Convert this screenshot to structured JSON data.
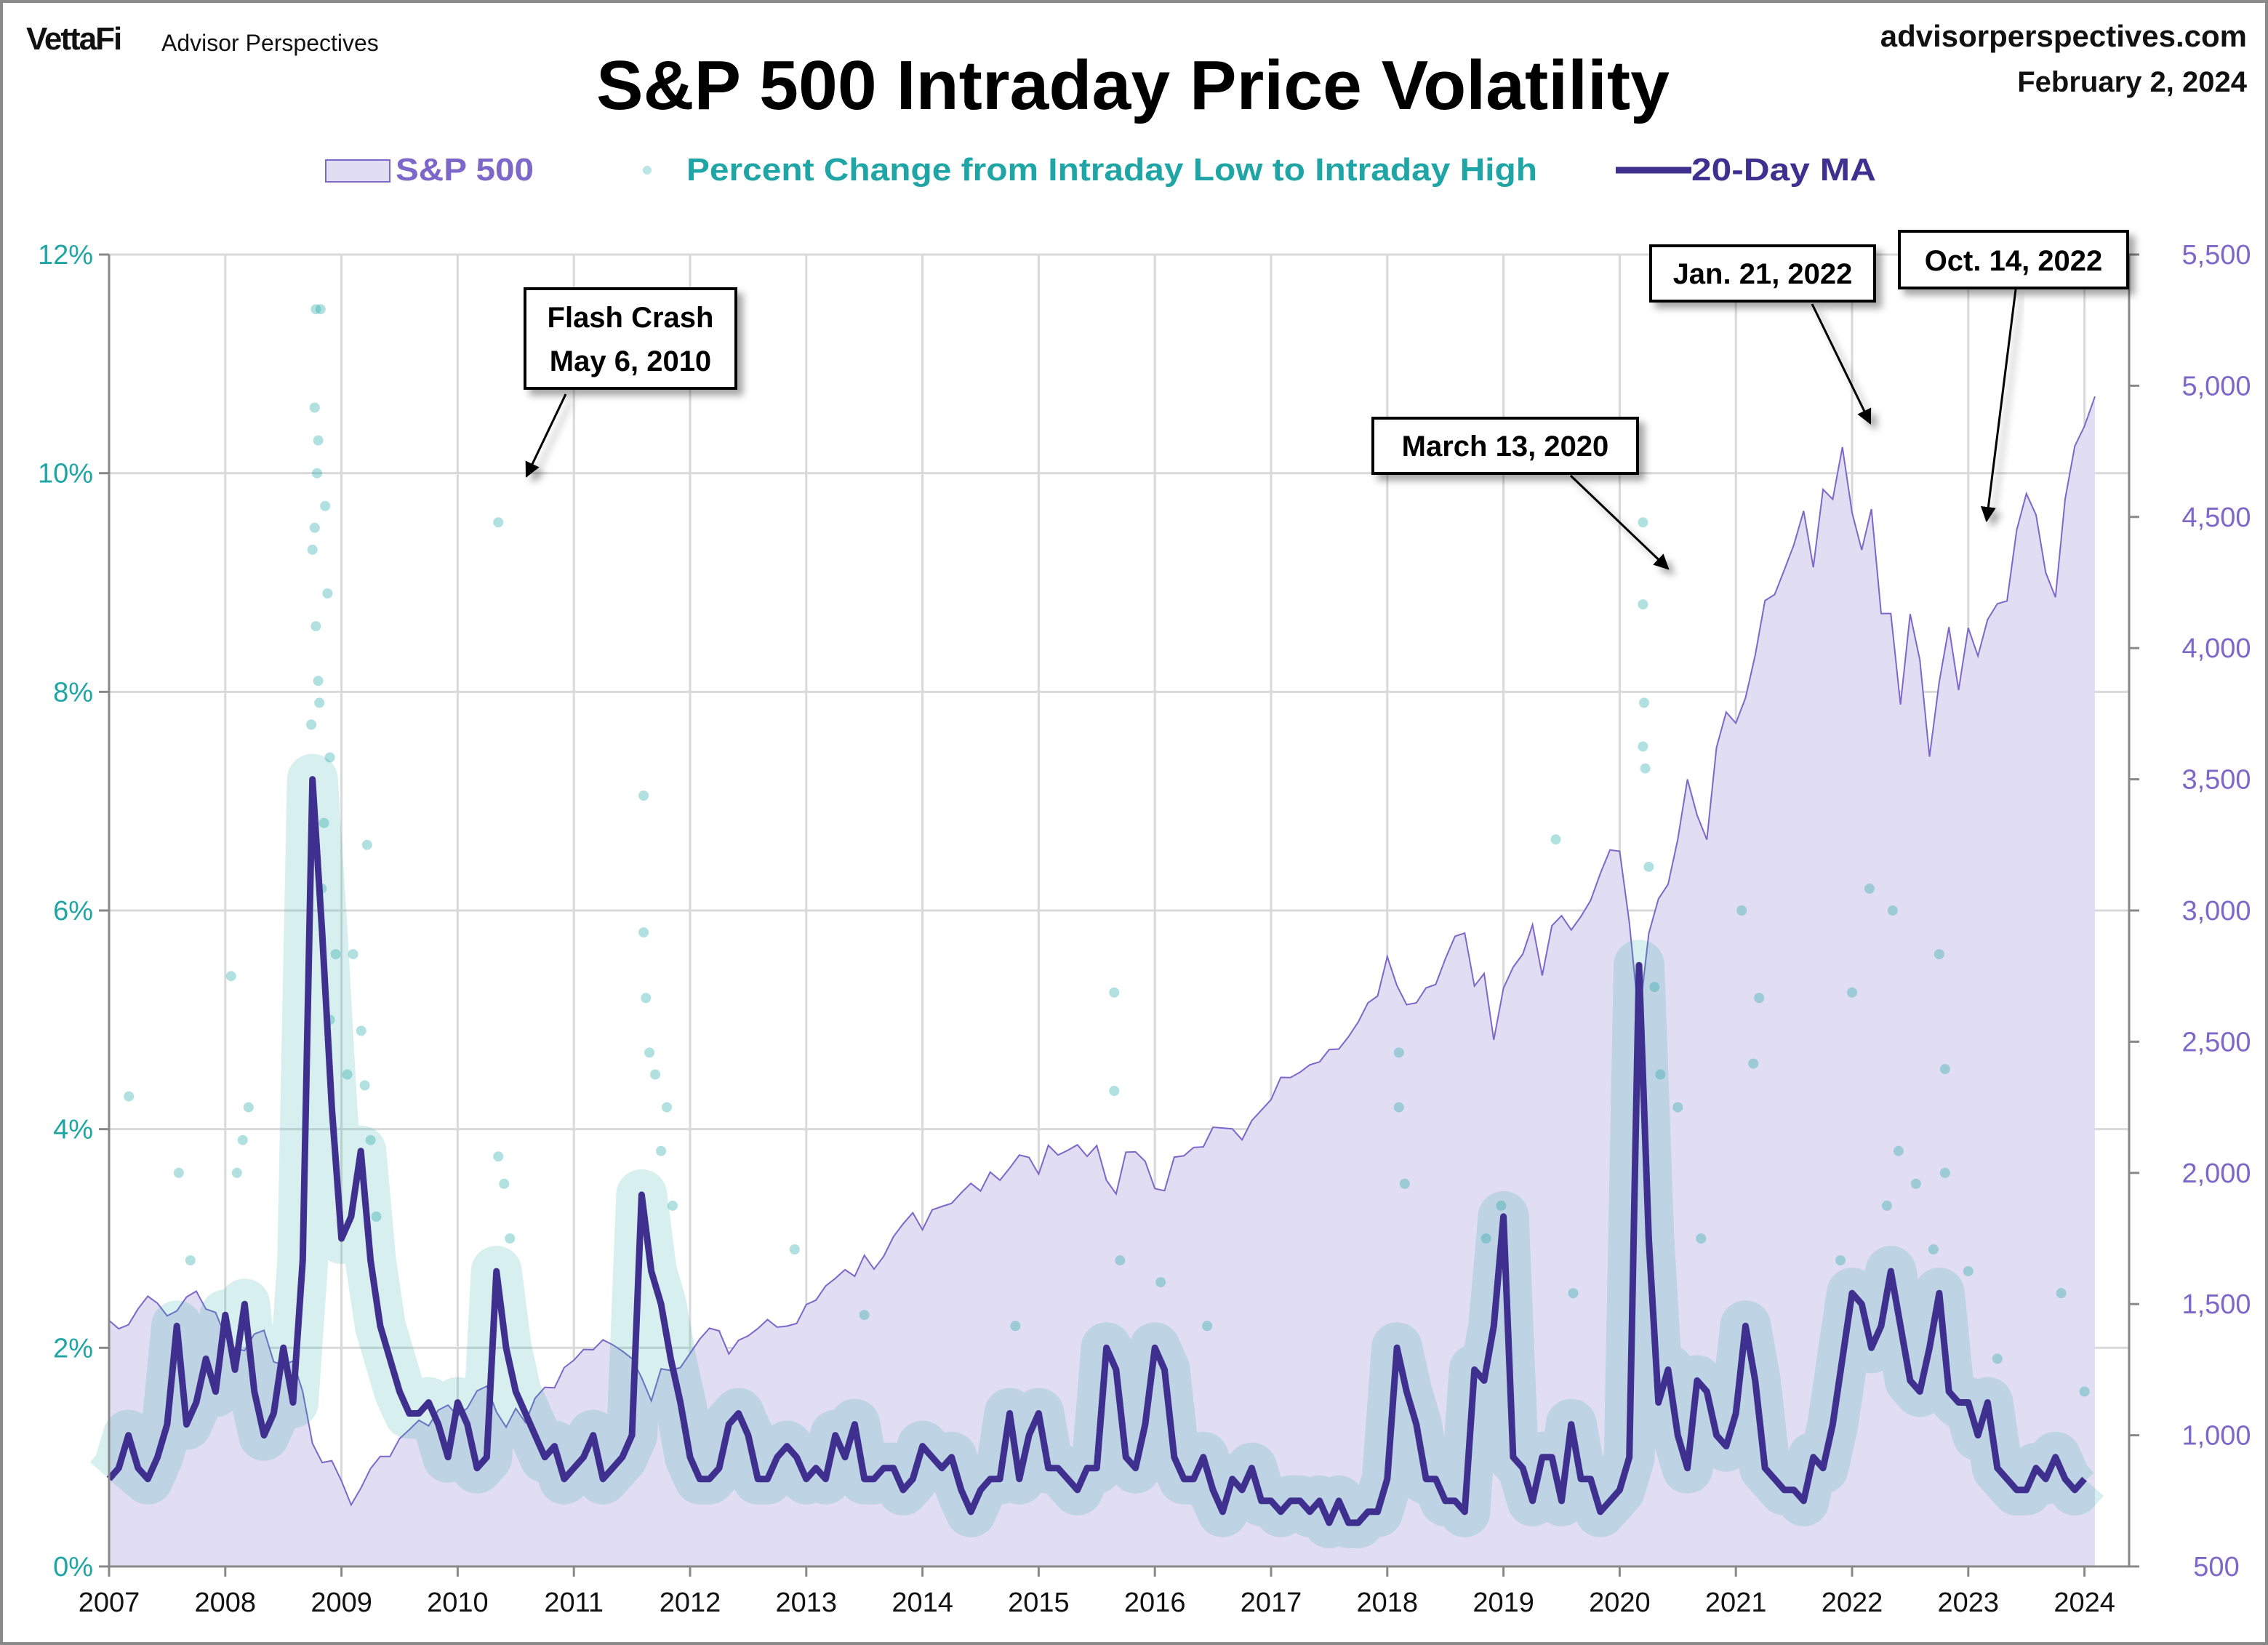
{
  "header": {
    "logo_text": "VettaFi",
    "brand": "Advisor Perspectives",
    "site": "advisorperspectives.com",
    "date": "February 2, 2024"
  },
  "chart_data": {
    "type": "line",
    "title": "S&P 500 Intraday Price Volatility",
    "legend": {
      "placement": "top",
      "items": [
        {
          "label": "S&P 500",
          "kind": "area",
          "color": "#7b68c8",
          "fill": "#e1ddf2"
        },
        {
          "label": "Percent Change from Intraday Low to Intraday High",
          "kind": "scatter",
          "color": "#1fa5a5"
        },
        {
          "label": "20-Day MA",
          "kind": "line",
          "color": "#3f2f8f"
        }
      ]
    },
    "x_axis": {
      "range": [
        2007,
        2024.4
      ],
      "ticks": [
        "2007",
        "2008",
        "2009",
        "2010",
        "2011",
        "2012",
        "2013",
        "2014",
        "2015",
        "2016",
        "2017",
        "2018",
        "2019",
        "2020",
        "2021",
        "2022",
        "2023",
        "2024"
      ]
    },
    "y_left": {
      "range": [
        0,
        12
      ],
      "ticks": [
        "0%",
        "2%",
        "4%",
        "6%",
        "8%",
        "10%",
        "12%"
      ],
      "color": "#1fa5a5"
    },
    "y_right": {
      "range": [
        500,
        5500
      ],
      "ticks": [
        "500",
        "1,000",
        "1,500",
        "2,000",
        "2,500",
        "3,000",
        "3,500",
        "4,000",
        "4,500",
        "5,000",
        "5,500"
      ],
      "color": "#7b68c8"
    },
    "grid": true,
    "sp500_monthly_start": 2007,
    "sp500_monthly": [
      1438,
      1406,
      1421,
      1482,
      1530,
      1503,
      1455,
      1474,
      1527,
      1549,
      1481,
      1468,
      1378,
      1331,
      1323,
      1386,
      1400,
      1280,
      1267,
      1283,
      1166,
      969,
      896,
      903,
      826,
      735,
      798,
      873,
      919,
      919,
      987,
      1021,
      1057,
      1036,
      1096,
      1115,
      1074,
      1104,
      1169,
      1187,
      1089,
      1031,
      1102,
      1049,
      1141,
      1183,
      1181,
      1258,
      1286,
      1327,
      1326,
      1364,
      1345,
      1321,
      1292,
      1219,
      1131,
      1253,
      1247,
      1258,
      1312,
      1366,
      1408,
      1398,
      1310,
      1362,
      1379,
      1407,
      1441,
      1412,
      1416,
      1426,
      1498,
      1515,
      1569,
      1598,
      1631,
      1606,
      1686,
      1633,
      1682,
      1757,
      1806,
      1848,
      1783,
      1859,
      1872,
      1884,
      1924,
      1960,
      1931,
      2003,
      1972,
      2018,
      2068,
      2059,
      1995,
      2105,
      2068,
      2086,
      2107,
      2063,
      2104,
      1972,
      1920,
      2079,
      2080,
      2044,
      1940,
      1932,
      2060,
      2065,
      2097,
      2099,
      2174,
      2171,
      2168,
      2126,
      2199,
      2239,
      2279,
      2364,
      2363,
      2384,
      2412,
      2423,
      2470,
      2472,
      2519,
      2575,
      2648,
      2674,
      2824,
      2714,
      2641,
      2648,
      2705,
      2718,
      2816,
      2902,
      2914,
      2712,
      2760,
      2507,
      2704,
      2784,
      2834,
      2946,
      2752,
      2942,
      2980,
      2926,
      2977,
      3038,
      3141,
      3231,
      3226,
      2954,
      2585,
      2912,
      3044,
      3100,
      3271,
      3500,
      3363,
      3270,
      3622,
      3756,
      3714,
      3811,
      3973,
      4181,
      4204,
      4298,
      4395,
      4523,
      4308,
      4605,
      4567,
      4766,
      4516,
      4374,
      4530,
      4132,
      4132,
      3785,
      4130,
      3955,
      3586,
      3872,
      4080,
      3840,
      4077,
      3970,
      4109,
      4169,
      4180,
      4450,
      4589,
      4508,
      4288,
      4194,
      4568,
      4770,
      4846,
      4959
    ],
    "ma20_monthly_start": 2007,
    "ma20_monthly": [
      0.8,
      0.9,
      1.2,
      0.9,
      0.8,
      1.0,
      1.3,
      2.2,
      1.3,
      1.5,
      1.9,
      1.6,
      2.3,
      1.8,
      2.4,
      1.6,
      1.2,
      1.4,
      2.0,
      1.5,
      2.8,
      7.2,
      5.8,
      4.2,
      3.0,
      3.2,
      3.8,
      2.8,
      2.2,
      1.9,
      1.6,
      1.4,
      1.4,
      1.5,
      1.3,
      1.0,
      1.5,
      1.3,
      0.9,
      1.0,
      2.7,
      2.0,
      1.6,
      1.4,
      1.2,
      1.0,
      1.1,
      0.8,
      0.9,
      1.0,
      1.2,
      0.8,
      0.9,
      1.0,
      1.2,
      3.4,
      2.7,
      2.4,
      1.9,
      1.5,
      1.0,
      0.8,
      0.8,
      0.9,
      1.3,
      1.4,
      1.2,
      0.8,
      0.8,
      1.0,
      1.1,
      1.0,
      0.8,
      0.9,
      0.8,
      1.2,
      1.0,
      1.3,
      0.8,
      0.8,
      0.9,
      0.9,
      0.7,
      0.8,
      1.1,
      1.0,
      0.9,
      1.0,
      0.7,
      0.5,
      0.7,
      0.8,
      0.8,
      1.4,
      0.8,
      1.2,
      1.4,
      0.9,
      0.9,
      0.8,
      0.7,
      0.9,
      0.9,
      2.0,
      1.8,
      1.0,
      0.9,
      1.3,
      2.0,
      1.8,
      1.0,
      0.8,
      0.8,
      1.0,
      0.7,
      0.5,
      0.8,
      0.7,
      0.9,
      0.6,
      0.6,
      0.5,
      0.6,
      0.6,
      0.5,
      0.6,
      0.4,
      0.6,
      0.4,
      0.4,
      0.5,
      0.5,
      0.8,
      2.0,
      1.6,
      1.3,
      0.8,
      0.8,
      0.6,
      0.6,
      0.5,
      1.8,
      1.7,
      2.2,
      3.2,
      1.0,
      0.9,
      0.6,
      1.0,
      1.0,
      0.6,
      1.3,
      0.8,
      0.8,
      0.5,
      0.6,
      0.7,
      1.0,
      5.5,
      3.0,
      1.5,
      1.8,
      1.2,
      0.9,
      1.7,
      1.6,
      1.2,
      1.1,
      1.4,
      2.2,
      1.7,
      0.9,
      0.8,
      0.7,
      0.7,
      0.6,
      1.0,
      0.9,
      1.3,
      1.9,
      2.5,
      2.4,
      2.0,
      2.2,
      2.7,
      2.2,
      1.7,
      1.6,
      2.0,
      2.5,
      1.6,
      1.5,
      1.5,
      1.2,
      1.5,
      0.9,
      0.8,
      0.7,
      0.7,
      0.9,
      0.8,
      1.0,
      0.8,
      0.7,
      0.8
    ],
    "scatter_points": [
      [
        2007.17,
        4.3
      ],
      [
        2007.6,
        3.6
      ],
      [
        2007.7,
        2.8
      ],
      [
        2008.05,
        5.4
      ],
      [
        2008.2,
        4.2
      ],
      [
        2008.15,
        3.9
      ],
      [
        2008.1,
        3.6
      ],
      [
        2008.78,
        11.5
      ],
      [
        2008.82,
        11.5
      ],
      [
        2008.77,
        10.6
      ],
      [
        2008.8,
        10.3
      ],
      [
        2008.79,
        10.0
      ],
      [
        2008.86,
        9.7
      ],
      [
        2008.75,
        9.3
      ],
      [
        2008.77,
        9.5
      ],
      [
        2008.88,
        8.9
      ],
      [
        2008.78,
        8.6
      ],
      [
        2008.8,
        8.1
      ],
      [
        2008.81,
        7.9
      ],
      [
        2008.74,
        7.7
      ],
      [
        2008.9,
        7.4
      ],
      [
        2008.85,
        6.8
      ],
      [
        2008.83,
        6.2
      ],
      [
        2008.95,
        5.6
      ],
      [
        2008.9,
        5.0
      ],
      [
        2009.22,
        6.6
      ],
      [
        2009.1,
        5.6
      ],
      [
        2009.17,
        4.9
      ],
      [
        2009.2,
        4.4
      ],
      [
        2009.25,
        3.9
      ],
      [
        2009.05,
        4.5
      ],
      [
        2009.3,
        3.2
      ],
      [
        2010.35,
        9.55
      ],
      [
        2010.35,
        3.75
      ],
      [
        2010.4,
        3.5
      ],
      [
        2010.45,
        3.0
      ],
      [
        2011.6,
        7.05
      ],
      [
        2011.6,
        5.8
      ],
      [
        2011.62,
        5.2
      ],
      [
        2011.65,
        4.7
      ],
      [
        2011.7,
        4.5
      ],
      [
        2011.8,
        4.2
      ],
      [
        2011.75,
        3.8
      ],
      [
        2011.85,
        3.3
      ],
      [
        2012.9,
        2.9
      ],
      [
        2013.5,
        2.3
      ],
      [
        2014.8,
        2.2
      ],
      [
        2015.65,
        5.25
      ],
      [
        2015.65,
        4.35
      ],
      [
        2015.7,
        2.8
      ],
      [
        2016.05,
        2.6
      ],
      [
        2016.45,
        2.2
      ],
      [
        2018.1,
        4.2
      ],
      [
        2018.1,
        4.7
      ],
      [
        2018.15,
        3.5
      ],
      [
        2018.85,
        3.0
      ],
      [
        2018.98,
        3.3
      ],
      [
        2019.45,
        6.65
      ],
      [
        2019.6,
        2.5
      ],
      [
        2020.2,
        9.55
      ],
      [
        2020.2,
        8.8
      ],
      [
        2020.21,
        7.9
      ],
      [
        2020.2,
        7.5
      ],
      [
        2020.22,
        7.3
      ],
      [
        2020.25,
        6.4
      ],
      [
        2020.3,
        5.3
      ],
      [
        2020.35,
        4.5
      ],
      [
        2020.5,
        4.2
      ],
      [
        2020.7,
        3.0
      ],
      [
        2021.05,
        6.0
      ],
      [
        2021.15,
        4.6
      ],
      [
        2021.2,
        5.2
      ],
      [
        2021.9,
        2.8
      ],
      [
        2022.0,
        5.25
      ],
      [
        2022.15,
        6.2
      ],
      [
        2022.35,
        6.0
      ],
      [
        2022.4,
        3.8
      ],
      [
        2022.3,
        3.3
      ],
      [
        2022.55,
        3.5
      ],
      [
        2022.75,
        5.6
      ],
      [
        2022.8,
        4.55
      ],
      [
        2022.8,
        3.6
      ],
      [
        2022.7,
        2.9
      ],
      [
        2023.0,
        2.7
      ],
      [
        2023.25,
        1.9
      ],
      [
        2023.8,
        2.5
      ],
      [
        2024.0,
        1.6
      ]
    ],
    "annotations": [
      {
        "lines": [
          "Flash Crash",
          "May 6, 2010"
        ]
      },
      {
        "lines": [
          "March 13, 2020"
        ]
      },
      {
        "lines": [
          "Jan. 21, 2022"
        ]
      },
      {
        "lines": [
          "Oct. 14, 2022"
        ]
      }
    ]
  }
}
